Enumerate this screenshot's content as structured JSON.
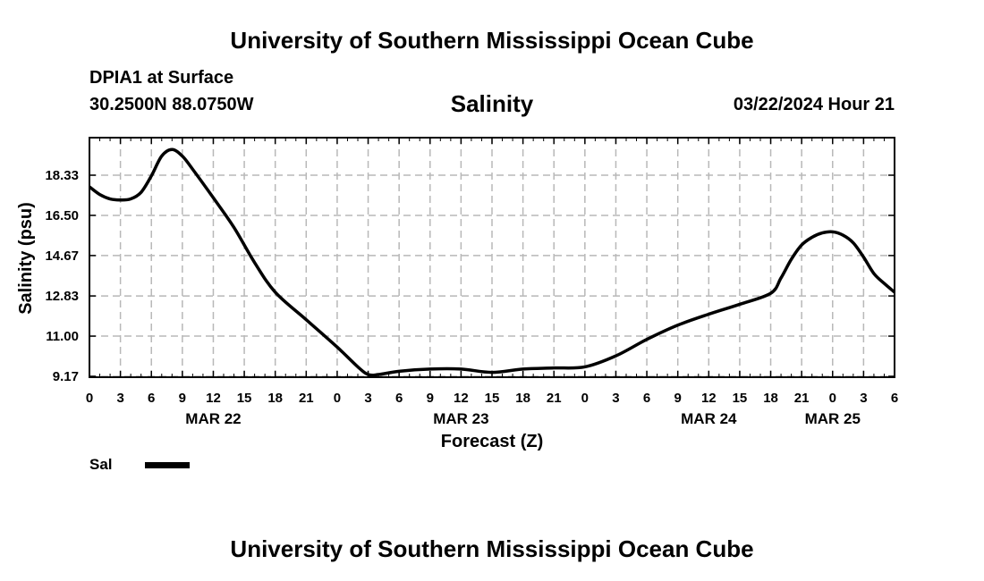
{
  "header": {
    "title": "University of Southern Mississippi Ocean Cube",
    "station": "DPIA1 at Surface",
    "coordinates": "30.2500N  88.0750W",
    "variable_title": "Salinity",
    "datetime": "03/22/2024 Hour 21"
  },
  "footer": {
    "title": "University of Southern Mississippi Ocean Cube"
  },
  "chart_data": {
    "type": "line",
    "title": "Salinity",
    "xlabel": "Forecast (Z)",
    "ylabel": "Salinity (psu)",
    "ylim": [
      9.0,
      20.0
    ],
    "xlim_hours": [
      0,
      78
    ],
    "y_ticks": [
      "9.17",
      "11.00",
      "12.83",
      "14.67",
      "16.50",
      "18.33"
    ],
    "y_tick_values": [
      9.17,
      11.0,
      12.83,
      14.67,
      16.5,
      18.33
    ],
    "x_tick_labels": [
      "0",
      "3",
      "6",
      "9",
      "12",
      "15",
      "18",
      "21",
      "0",
      "3",
      "6",
      "9",
      "12",
      "15",
      "18",
      "21",
      "0",
      "3",
      "6",
      "9",
      "12",
      "15",
      "18",
      "21",
      "0",
      "3",
      "6"
    ],
    "x_tick_hours": [
      0,
      3,
      6,
      9,
      12,
      15,
      18,
      21,
      24,
      27,
      30,
      33,
      36,
      39,
      42,
      45,
      48,
      51,
      54,
      57,
      60,
      63,
      66,
      69,
      72,
      75,
      78
    ],
    "date_labels": [
      {
        "label": "MAR 22",
        "hour": 12
      },
      {
        "label": "MAR 23",
        "hour": 36
      },
      {
        "label": "MAR 24",
        "hour": 60
      },
      {
        "label": "MAR 25",
        "hour": 72
      }
    ],
    "grid": true,
    "legend": {
      "label": "Sal",
      "position": "bottom-left"
    },
    "series": [
      {
        "name": "Sal",
        "color": "#000000",
        "x": [
          0,
          1,
          2,
          3,
          4,
          5,
          6,
          7,
          8,
          9,
          10,
          12,
          14,
          16,
          18,
          21,
          24,
          26,
          27,
          28,
          30,
          33,
          36,
          39,
          42,
          45,
          48,
          51,
          54,
          57,
          60,
          63,
          66,
          67,
          68,
          69,
          70,
          71,
          72,
          73,
          74,
          75,
          76,
          77,
          78
        ],
        "y": [
          17.8,
          17.45,
          17.25,
          17.2,
          17.25,
          17.55,
          18.3,
          19.2,
          19.5,
          19.2,
          18.6,
          17.3,
          15.95,
          14.35,
          13.0,
          11.75,
          10.5,
          9.6,
          9.25,
          9.25,
          9.4,
          9.5,
          9.5,
          9.35,
          9.5,
          9.55,
          9.6,
          10.1,
          10.85,
          11.5,
          12.0,
          12.45,
          12.95,
          13.65,
          14.5,
          15.15,
          15.5,
          15.7,
          15.75,
          15.6,
          15.25,
          14.6,
          13.85,
          13.4,
          13.0
        ]
      }
    ]
  }
}
